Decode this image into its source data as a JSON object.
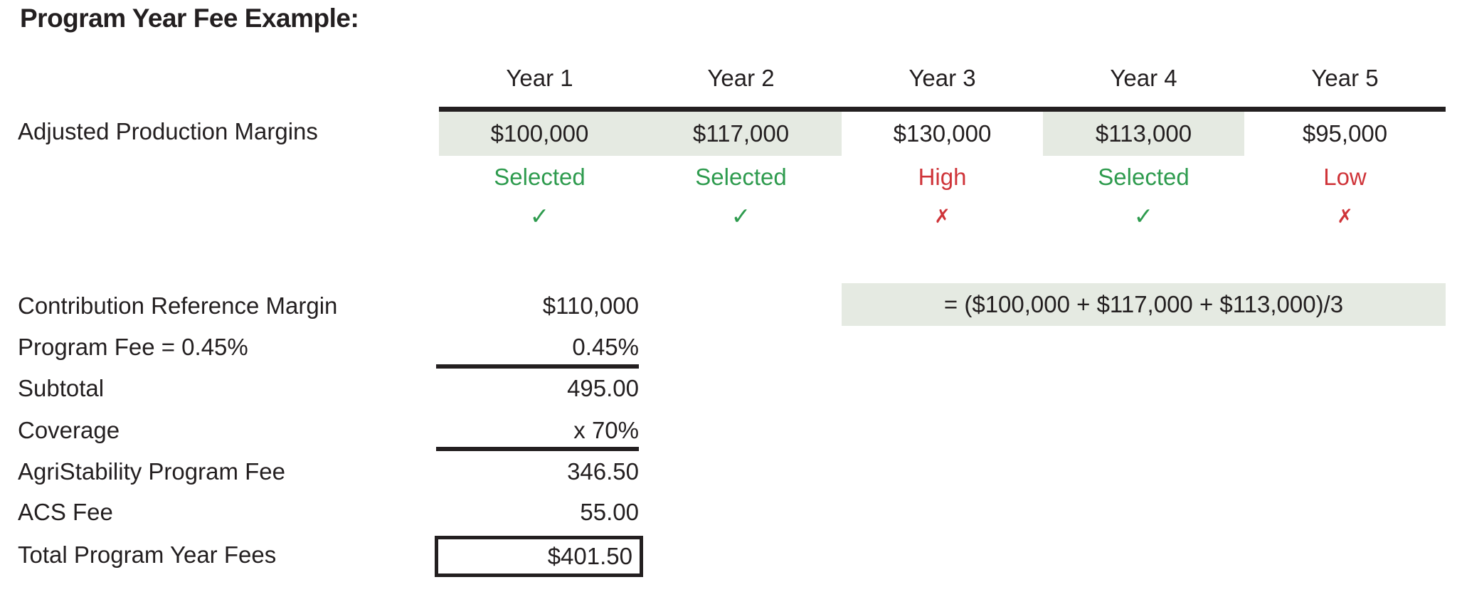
{
  "title": "Program Year Fee Example:",
  "colors": {
    "ink": "#231f20",
    "green": "#2e9b4e",
    "red": "#cf3439",
    "highlight": "#e5eae2"
  },
  "year_table": {
    "columns": [
      "Year 1",
      "Year 2",
      "Year 3",
      "Year 4",
      "Year 5"
    ],
    "margins_label": "Adjusted Production Margins",
    "margins": [
      "$100,000",
      "$117,000",
      "$130,000",
      "$113,000",
      "$95,000"
    ],
    "status": [
      "Selected",
      "Selected",
      "High",
      "Selected",
      "Low"
    ],
    "status_colors": [
      "green",
      "green",
      "red",
      "green",
      "red"
    ],
    "marks": [
      "✓",
      "✓",
      "✗",
      "✓",
      "✗"
    ],
    "highlighted": [
      true,
      true,
      false,
      true,
      false
    ]
  },
  "reference_formula": "= ($100,000 + $117,000 + $113,000)/3",
  "fee_table": {
    "rows": [
      {
        "label": "Contribution Reference Margin",
        "value": "$110,000"
      },
      {
        "label": "Program Fee = 0.45%",
        "value": "0.45%"
      },
      {
        "label": "Subtotal",
        "value": "495.00"
      },
      {
        "label": "Coverage",
        "value": "x 70%"
      },
      {
        "label": "AgriStability Program Fee",
        "value": "346.50"
      },
      {
        "label": "ACS Fee",
        "value": "55.00"
      },
      {
        "label": "Total Program Year Fees",
        "value": "$401.50"
      }
    ]
  }
}
